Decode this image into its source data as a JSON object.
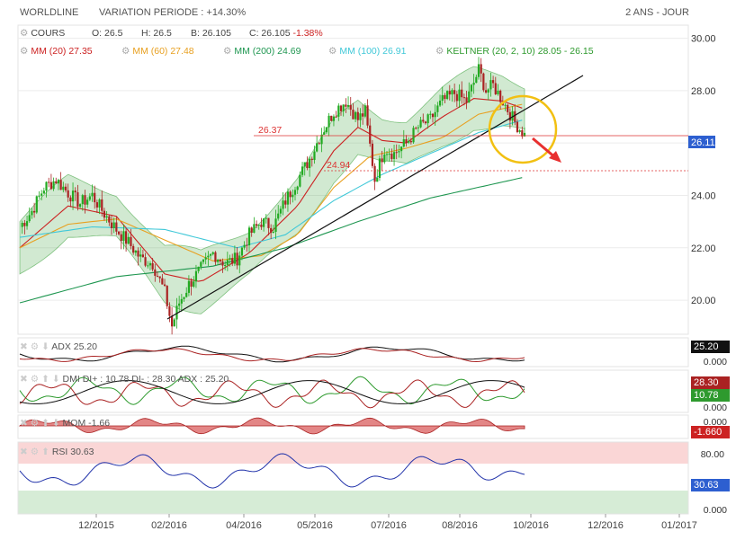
{
  "header": {
    "stock": "WORLDLINE",
    "variation": "VARIATION PERIODE : +14.30%",
    "period": "2 ANS - JOUR"
  },
  "legend": {
    "cours": "COURS",
    "open": "O: 26.5",
    "high": "H: 26.5",
    "low": "B: 26.105",
    "close_label": "C: 26.105",
    "close_change": "-1.38%",
    "mm20": "MM (20) 27.35",
    "mm60": "MM (60) 27.48",
    "mm200": "MM (200) 24.69",
    "mm100": "MM (100) 26.91",
    "keltner": "KELTNER (20, 2, 10) 28.05 - 26.15"
  },
  "colors": {
    "mm20": "#cc2222",
    "mm60": "#e8a020",
    "mm200": "#1e9650",
    "mm100": "#40c8d8",
    "keltner": "#2e9a2e",
    "up": "#22aa22",
    "down": "#aa2222"
  },
  "annotations": {
    "resistance": "26.37",
    "support": "24.94",
    "last_price": "26.11"
  },
  "chart_data": [
    {
      "type": "candlestick",
      "title": "WORLDLINE",
      "y_ticks": [
        "30.00",
        "28.00",
        "26.00",
        "24.00",
        "22.00",
        "20.00"
      ],
      "ylim": [
        18.7,
        30.5
      ],
      "x_ticks": [
        "12/2015",
        "02/2016",
        "04/2016",
        "05/2016",
        "07/2016",
        "08/2016",
        "10/2016",
        "12/2016",
        "01/2017"
      ],
      "close_path": [
        [
          0,
          22.8
        ],
        [
          5,
          23.4
        ],
        [
          10,
          24.3
        ],
        [
          15,
          24.6
        ],
        [
          20,
          24.1
        ],
        [
          25,
          23.7
        ],
        [
          30,
          24.0
        ],
        [
          35,
          23.3
        ],
        [
          40,
          22.7
        ],
        [
          45,
          22.2
        ],
        [
          50,
          21.6
        ],
        [
          55,
          21.4
        ],
        [
          60,
          20.3
        ],
        [
          63,
          19.0
        ],
        [
          66,
          19.9
        ],
        [
          70,
          20.6
        ],
        [
          75,
          21.2
        ],
        [
          80,
          21.8
        ],
        [
          85,
          21.4
        ],
        [
          90,
          21.6
        ],
        [
          95,
          22.5
        ],
        [
          100,
          23.0
        ],
        [
          105,
          22.8
        ],
        [
          110,
          23.8
        ],
        [
          115,
          24.6
        ],
        [
          120,
          25.4
        ],
        [
          125,
          26.4
        ],
        [
          130,
          27.2
        ],
        [
          135,
          27.6
        ],
        [
          140,
          26.9
        ],
        [
          143,
          27.2
        ],
        [
          147,
          24.6
        ],
        [
          151,
          25.8
        ],
        [
          155,
          25.6
        ],
        [
          160,
          26.0
        ],
        [
          165,
          26.6
        ],
        [
          170,
          26.9
        ],
        [
          175,
          27.6
        ],
        [
          180,
          27.9
        ],
        [
          185,
          27.6
        ],
        [
          188,
          28.3
        ],
        [
          190,
          28.8
        ],
        [
          193,
          28.0
        ],
        [
          196,
          28.2
        ],
        [
          200,
          27.6
        ],
        [
          205,
          26.8
        ],
        [
          209,
          26.3
        ]
      ],
      "series": [
        {
          "name": "MM (20)",
          "values": [
            [
              0,
              22.0
            ],
            [
              20,
              23.6
            ],
            [
              40,
              23.2
            ],
            [
              60,
              21.0
            ],
            [
              75,
              20.7
            ],
            [
              95,
              21.8
            ],
            [
              115,
              23.6
            ],
            [
              130,
              25.7
            ],
            [
              140,
              26.6
            ],
            [
              150,
              26.1
            ],
            [
              160,
              26.0
            ],
            [
              175,
              27.0
            ],
            [
              188,
              27.7
            ],
            [
              200,
              27.6
            ],
            [
              209,
              27.3
            ]
          ]
        },
        {
          "name": "MM (60)",
          "values": [
            [
              0,
              22.0
            ],
            [
              20,
              22.9
            ],
            [
              40,
              23.1
            ],
            [
              60,
              22.3
            ],
            [
              80,
              21.5
            ],
            [
              100,
              21.7
            ],
            [
              115,
              22.5
            ],
            [
              130,
              24.3
            ],
            [
              145,
              25.5
            ],
            [
              160,
              25.8
            ],
            [
              175,
              26.2
            ],
            [
              190,
              27.1
            ],
            [
              209,
              27.5
            ]
          ]
        },
        {
          "name": "MM (100)",
          "values": [
            [
              0,
              22.4
            ],
            [
              30,
              22.8
            ],
            [
              60,
              22.7
            ],
            [
              90,
              22.0
            ],
            [
              110,
              22.5
            ],
            [
              130,
              23.8
            ],
            [
              150,
              24.8
            ],
            [
              170,
              25.6
            ],
            [
              190,
              26.4
            ],
            [
              209,
              26.9
            ]
          ]
        },
        {
          "name": "MM (200)",
          "values": [
            [
              0,
              19.9
            ],
            [
              40,
              20.9
            ],
            [
              80,
              21.3
            ],
            [
              110,
              22.0
            ],
            [
              140,
              23.0
            ],
            [
              170,
              23.9
            ],
            [
              209,
              24.7
            ]
          ]
        }
      ]
    },
    {
      "type": "line",
      "title": "ADX",
      "value_label": "ADX 25.20",
      "last": "25.20",
      "y_ticks": [
        "0.000"
      ]
    },
    {
      "type": "line",
      "title": "DMI",
      "value_label": "DMI DI+ : 10.78 DI- : 28.30 ADX : 25.20",
      "last_di_minus": "28.30",
      "last_di_plus": "10.78",
      "y_ticks": [
        "0.000"
      ]
    },
    {
      "type": "area",
      "title": "MOM",
      "value_label": "MOM -1.66",
      "last": "-1.660",
      "y_ticks": [
        "0.000"
      ]
    },
    {
      "type": "line",
      "title": "RSI",
      "value_label": "RSI 30.63",
      "last": "30.63",
      "y_ticks": [
        "80.00",
        "0.000"
      ]
    }
  ]
}
